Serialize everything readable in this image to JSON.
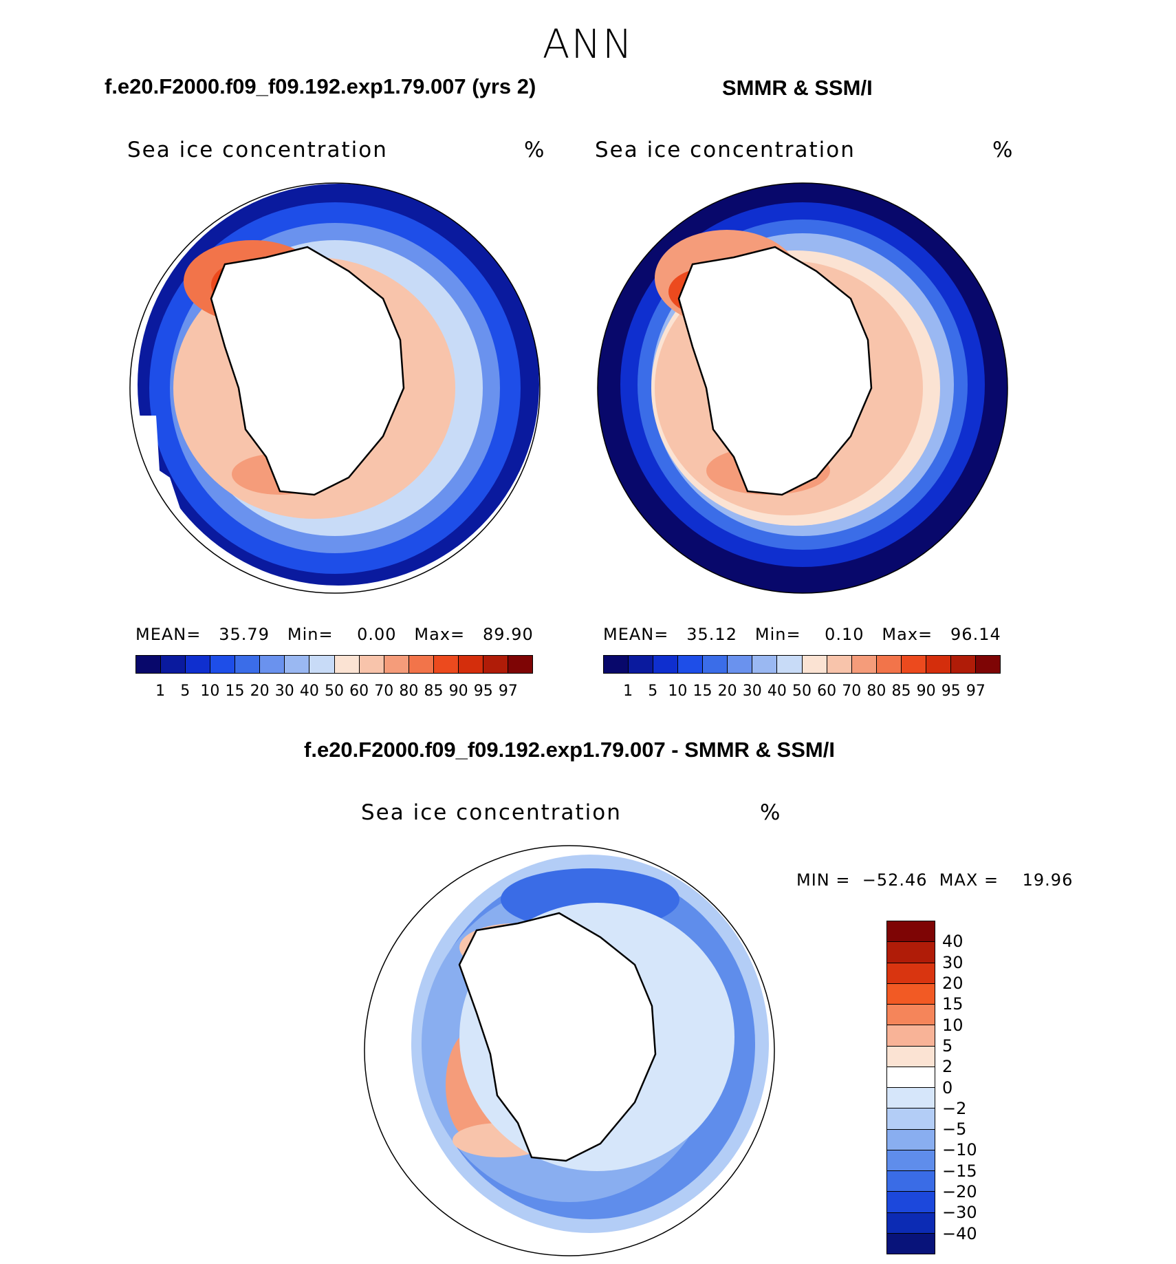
{
  "page_title": "ANN",
  "panels": [
    {
      "title": "f.e20.F2000.f09_f09.192.exp1.79.007 (yrs 2)",
      "variable": "Sea ice concentration",
      "units": "%",
      "stats": {
        "mean_label": "MEAN=",
        "mean": "35.79",
        "min_label": "Min=",
        "min": "0.00",
        "max_label": "Max=",
        "max": "89.90"
      }
    },
    {
      "title": "SMMR & SSM/I",
      "variable": "Sea ice concentration",
      "units": "%",
      "stats": {
        "mean_label": "MEAN=",
        "mean": "35.12",
        "min_label": "Min=",
        "min": "0.10",
        "max_label": "Max=",
        "max": "96.14"
      }
    }
  ],
  "abs_colorbar": {
    "labels": [
      "1",
      "5",
      "10",
      "15",
      "20",
      "30",
      "40",
      "50",
      "60",
      "70",
      "80",
      "85",
      "90",
      "95",
      "97"
    ],
    "colors": [
      "#08086b",
      "#0a1a9e",
      "#0f2fcf",
      "#1e4ee8",
      "#3b6de8",
      "#6a92ee",
      "#9ab8f2",
      "#c8dbf7",
      "#fbe3d3",
      "#f8c4ab",
      "#f59c7a",
      "#f2744a",
      "#ec4a1e",
      "#d42e0c",
      "#b01c08",
      "#7e0505"
    ]
  },
  "diff_panel": {
    "title": "f.e20.F2000.f09_f09.192.exp1.79.007 - SMMR & SSM/I",
    "variable": "Sea ice concentration",
    "units": "%",
    "minmax": "MIN =  −52.46  MAX =    19.96"
  },
  "diff_colorbar": {
    "labels": [
      "40",
      "30",
      "20",
      "15",
      "10",
      "5",
      "2",
      "0",
      "−2",
      "−5",
      "−10",
      "−15",
      "−20",
      "−30",
      "−40"
    ],
    "colors": [
      "#7e0505",
      "#b01c08",
      "#d93510",
      "#f25a24",
      "#f5855a",
      "#f8b397",
      "#fbe3d3",
      "#ffffff",
      "#d6e6fa",
      "#b3cdf6",
      "#89aef0",
      "#5f8deb",
      "#3a6ce6",
      "#1c48dc",
      "#0c2bb4",
      "#08137a"
    ]
  }
}
